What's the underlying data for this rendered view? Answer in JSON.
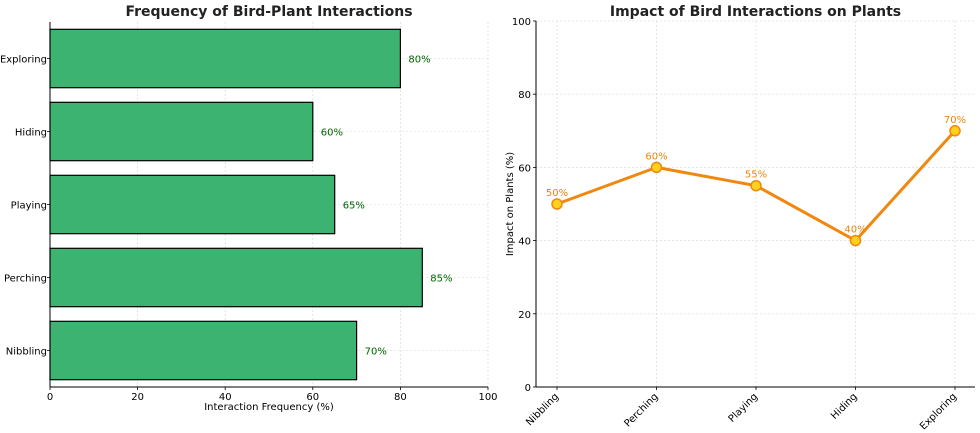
{
  "chart_data": [
    {
      "type": "bar",
      "orientation": "horizontal",
      "title": "Frequency of Bird-Plant Interactions",
      "xlabel": "Interaction Frequency (%)",
      "ylabel": "",
      "categories": [
        "Nibbling",
        "Perching",
        "Playing",
        "Hiding",
        "Exploring"
      ],
      "values": [
        70,
        85,
        65,
        60,
        80
      ],
      "data_labels": [
        "70%",
        "85%",
        "65%",
        "60%",
        "80%"
      ],
      "xlim": [
        0,
        100
      ],
      "xticks": [
        0,
        20,
        40,
        60,
        80,
        100
      ],
      "bar_color": "#3cb371",
      "label_color": "#006400",
      "grid": true
    },
    {
      "type": "line",
      "title": "Impact of Bird Interactions on Plants",
      "xlabel": "",
      "ylabel": "Impact on Plants (%)",
      "categories": [
        "Nibbling",
        "Perching",
        "Playing",
        "Hiding",
        "Exploring"
      ],
      "values": [
        50,
        60,
        55,
        40,
        70
      ],
      "data_labels": [
        "50%",
        "60%",
        "55%",
        "40%",
        "70%"
      ],
      "ylim": [
        0,
        100
      ],
      "yticks": [
        0,
        20,
        40,
        60,
        80,
        100
      ],
      "line_color": "#f0880f",
      "marker_color": "#ffd11a",
      "label_color": "#e8870c",
      "grid": true
    }
  ]
}
